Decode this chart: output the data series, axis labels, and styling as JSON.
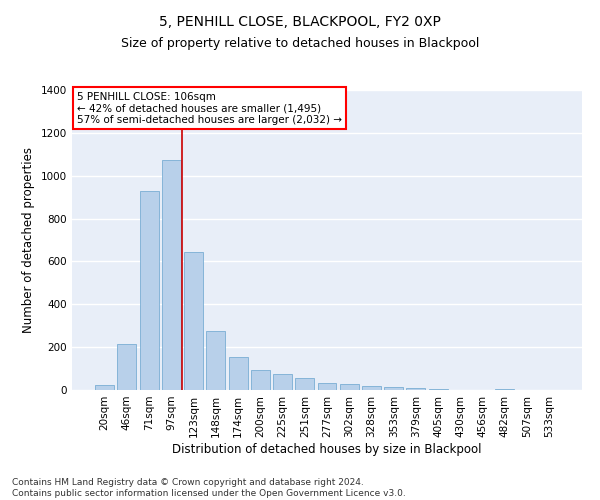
{
  "title": "5, PENHILL CLOSE, BLACKPOOL, FY2 0XP",
  "subtitle": "Size of property relative to detached houses in Blackpool",
  "xlabel": "Distribution of detached houses by size in Blackpool",
  "ylabel": "Number of detached properties",
  "bar_labels": [
    "20sqm",
    "46sqm",
    "71sqm",
    "97sqm",
    "123sqm",
    "148sqm",
    "174sqm",
    "200sqm",
    "225sqm",
    "251sqm",
    "277sqm",
    "302sqm",
    "328sqm",
    "353sqm",
    "379sqm",
    "405sqm",
    "430sqm",
    "456sqm",
    "482sqm",
    "507sqm",
    "533sqm"
  ],
  "bar_values": [
    22,
    215,
    930,
    1075,
    645,
    275,
    155,
    95,
    75,
    55,
    35,
    28,
    20,
    14,
    10,
    5,
    0,
    0,
    4,
    0,
    0
  ],
  "bar_color": "#b8d0ea",
  "bar_edge_color": "#7aaed4",
  "background_color": "#e8eef8",
  "grid_color": "#ffffff",
  "ylim": [
    0,
    1400
  ],
  "yticks": [
    0,
    200,
    400,
    600,
    800,
    1000,
    1200,
    1400
  ],
  "property_line_color": "#cc0000",
  "annotation_line1": "5 PENHILL CLOSE: 106sqm",
  "annotation_line2": "← 42% of detached houses are smaller (1,495)",
  "annotation_line3": "57% of semi-detached houses are larger (2,032) →",
  "footer_text": "Contains HM Land Registry data © Crown copyright and database right 2024.\nContains public sector information licensed under the Open Government Licence v3.0.",
  "title_fontsize": 10,
  "subtitle_fontsize": 9,
  "axis_label_fontsize": 8.5,
  "tick_fontsize": 7.5,
  "annotation_fontsize": 7.5,
  "footer_fontsize": 6.5
}
